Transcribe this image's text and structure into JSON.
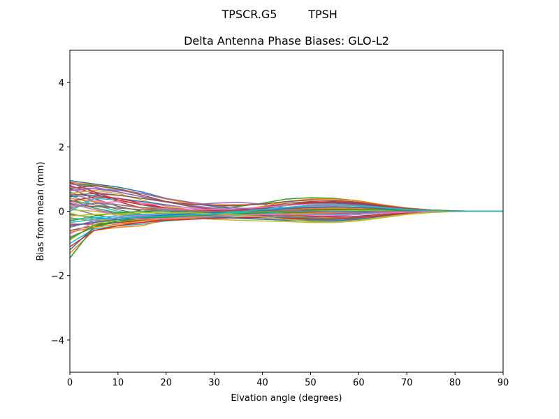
{
  "figure": {
    "suptitle_left": "TPSCR.G5",
    "suptitle_right": "TPSH"
  },
  "chart_data": {
    "type": "line",
    "title": "Delta Antenna Phase Biases: GLO-L2",
    "xlabel": "Elvation angle (degrees)",
    "ylabel": "Bias from mean (mm)",
    "xlim": [
      0,
      90
    ],
    "ylim": [
      -5,
      5
    ],
    "xticks": [
      0,
      10,
      20,
      30,
      40,
      50,
      60,
      70,
      80,
      90
    ],
    "yticks": [
      -4,
      -2,
      0,
      2,
      4
    ],
    "ytick_labels": [
      "−4",
      "−2",
      "0",
      "2",
      "4"
    ],
    "grid": false,
    "legend": "none",
    "x": [
      0,
      5,
      10,
      15,
      20,
      25,
      30,
      35,
      40,
      45,
      50,
      55,
      60,
      65,
      70,
      75,
      80,
      85,
      90
    ],
    "colors": [
      "#1f77b4",
      "#ff7f0e",
      "#2ca02c",
      "#d62728",
      "#9467bd",
      "#8c564b",
      "#e377c2",
      "#7f7f7f",
      "#bcbd22",
      "#17becf"
    ],
    "series": [
      {
        "values": [
          0.95,
          0.85,
          0.75,
          0.6,
          0.4,
          0.25,
          0.15,
          0.05,
          -0.05,
          -0.15,
          -0.2,
          -0.2,
          -0.15,
          -0.1,
          -0.05,
          -0.02,
          0.0,
          0.0,
          0.0
        ]
      },
      {
        "values": [
          0.9,
          0.82,
          0.7,
          0.55,
          0.38,
          0.25,
          0.2,
          0.2,
          0.22,
          0.3,
          0.35,
          0.33,
          0.28,
          0.18,
          0.1,
          0.04,
          0.01,
          0.0,
          0.0
        ]
      },
      {
        "values": [
          0.85,
          0.8,
          0.68,
          0.5,
          0.3,
          0.18,
          0.1,
          0.15,
          0.25,
          0.38,
          0.42,
          0.4,
          0.32,
          0.2,
          0.1,
          0.04,
          0.01,
          0.0,
          0.0
        ]
      },
      {
        "values": [
          0.8,
          0.55,
          0.3,
          0.1,
          0.0,
          -0.05,
          -0.05,
          -0.02,
          0.0,
          0.05,
          0.1,
          0.12,
          0.12,
          0.08,
          0.04,
          0.02,
          0.0,
          0.0,
          0.0
        ]
      },
      {
        "values": [
          0.75,
          0.7,
          0.6,
          0.45,
          0.3,
          0.2,
          0.25,
          0.28,
          0.22,
          0.1,
          0.0,
          -0.05,
          -0.05,
          -0.04,
          -0.02,
          -0.01,
          0.0,
          0.0,
          0.0
        ]
      },
      {
        "values": [
          0.7,
          0.4,
          0.15,
          0.0,
          -0.1,
          -0.15,
          -0.1,
          0.0,
          0.12,
          0.25,
          0.3,
          0.28,
          0.22,
          0.14,
          0.07,
          0.03,
          0.01,
          0.0,
          0.0
        ]
      },
      {
        "values": [
          0.65,
          0.6,
          0.5,
          0.4,
          0.28,
          0.18,
          0.1,
          0.05,
          0.05,
          0.1,
          0.15,
          0.18,
          0.16,
          0.1,
          0.05,
          0.02,
          0.0,
          0.0,
          0.0
        ]
      },
      {
        "values": [
          0.6,
          0.3,
          0.05,
          -0.1,
          -0.18,
          -0.2,
          -0.15,
          -0.08,
          0.0,
          0.08,
          0.12,
          0.12,
          0.1,
          0.06,
          0.03,
          0.01,
          0.0,
          0.0,
          0.0
        ]
      },
      {
        "values": [
          0.55,
          0.65,
          0.55,
          0.35,
          0.15,
          0.05,
          0.02,
          0.0,
          -0.05,
          -0.12,
          -0.18,
          -0.2,
          -0.18,
          -0.12,
          -0.06,
          -0.02,
          0.0,
          0.0,
          0.0
        ]
      },
      {
        "values": [
          0.5,
          0.2,
          0.0,
          -0.12,
          -0.2,
          -0.22,
          -0.18,
          -0.12,
          -0.05,
          0.02,
          0.06,
          0.08,
          0.07,
          0.05,
          0.02,
          0.01,
          0.0,
          0.0,
          0.0
        ]
      },
      {
        "values": [
          0.45,
          0.5,
          0.4,
          0.3,
          0.2,
          0.1,
          0.0,
          -0.1,
          -0.18,
          -0.25,
          -0.3,
          -0.3,
          -0.25,
          -0.16,
          -0.08,
          -0.03,
          0.0,
          0.0,
          0.0
        ]
      },
      {
        "values": [
          0.4,
          0.3,
          0.2,
          0.1,
          0.05,
          0.02,
          0.0,
          0.05,
          0.15,
          0.3,
          0.38,
          0.38,
          0.32,
          0.2,
          0.1,
          0.04,
          0.01,
          0.0,
          0.0
        ]
      },
      {
        "values": [
          0.35,
          0.1,
          -0.05,
          -0.1,
          -0.1,
          -0.08,
          -0.05,
          0.0,
          0.05,
          0.12,
          0.18,
          0.2,
          0.18,
          0.12,
          0.06,
          0.02,
          0.0,
          0.0,
          0.0
        ]
      },
      {
        "values": [
          0.3,
          0.45,
          0.4,
          0.25,
          0.1,
          0.0,
          -0.05,
          -0.1,
          -0.12,
          -0.12,
          -0.1,
          -0.08,
          -0.06,
          -0.04,
          -0.02,
          0.0,
          0.0,
          0.0,
          0.0
        ]
      },
      {
        "values": [
          0.25,
          0.05,
          -0.08,
          -0.15,
          -0.18,
          -0.18,
          -0.15,
          -0.1,
          -0.05,
          0.0,
          0.02,
          0.03,
          0.03,
          0.02,
          0.01,
          0.0,
          0.0,
          0.0,
          0.0
        ]
      },
      {
        "values": [
          0.2,
          0.15,
          0.1,
          0.05,
          0.0,
          -0.05,
          -0.1,
          -0.15,
          -0.15,
          -0.1,
          -0.05,
          0.0,
          0.02,
          0.02,
          0.01,
          0.0,
          0.0,
          0.0,
          0.0
        ]
      },
      {
        "values": [
          0.15,
          0.25,
          0.3,
          0.25,
          0.18,
          0.1,
          0.05,
          0.0,
          -0.05,
          -0.08,
          -0.1,
          -0.1,
          -0.08,
          -0.05,
          -0.02,
          -0.01,
          0.0,
          0.0,
          0.0
        ]
      },
      {
        "values": [
          0.1,
          -0.1,
          -0.25,
          -0.3,
          -0.25,
          -0.2,
          -0.15,
          -0.08,
          0.0,
          0.08,
          0.12,
          0.14,
          0.12,
          0.08,
          0.04,
          0.01,
          0.0,
          0.0,
          0.0
        ]
      },
      {
        "values": [
          0.05,
          0.0,
          -0.1,
          -0.15,
          -0.15,
          -0.12,
          -0.1,
          -0.08,
          -0.05,
          -0.02,
          0.0,
          0.02,
          0.02,
          0.02,
          0.01,
          0.0,
          0.0,
          0.0,
          0.0
        ]
      },
      {
        "values": [
          0.0,
          0.4,
          0.35,
          0.2,
          0.05,
          -0.05,
          -0.1,
          -0.15,
          -0.2,
          -0.25,
          -0.28,
          -0.28,
          -0.22,
          -0.14,
          -0.07,
          -0.02,
          0.0,
          0.0,
          0.0
        ]
      },
      {
        "values": [
          -0.1,
          -0.2,
          -0.25,
          -0.2,
          -0.15,
          -0.1,
          -0.05,
          0.0,
          0.08,
          0.18,
          0.25,
          0.27,
          0.22,
          0.14,
          0.07,
          0.02,
          0.0,
          0.0,
          0.0
        ]
      },
      {
        "values": [
          -0.2,
          -0.3,
          -0.35,
          -0.3,
          -0.22,
          -0.15,
          -0.1,
          -0.05,
          0.0,
          0.05,
          0.08,
          0.1,
          0.1,
          0.07,
          0.03,
          0.01,
          0.0,
          0.0,
          0.0
        ]
      },
      {
        "values": [
          -0.3,
          -0.15,
          -0.05,
          0.0,
          0.0,
          -0.02,
          -0.05,
          -0.1,
          -0.15,
          -0.2,
          -0.22,
          -0.22,
          -0.18,
          -0.12,
          -0.06,
          -0.02,
          0.0,
          0.0,
          0.0
        ]
      },
      {
        "values": [
          -0.4,
          -0.4,
          -0.35,
          -0.28,
          -0.2,
          -0.12,
          -0.05,
          0.02,
          0.1,
          0.2,
          0.28,
          0.3,
          0.25,
          0.16,
          0.08,
          0.03,
          0.0,
          0.0,
          0.0
        ]
      },
      {
        "values": [
          -0.5,
          -0.3,
          -0.2,
          -0.15,
          -0.12,
          -0.1,
          -0.1,
          -0.12,
          -0.15,
          -0.18,
          -0.18,
          -0.15,
          -0.1,
          -0.06,
          -0.03,
          -0.01,
          0.0,
          0.0,
          0.0
        ]
      },
      {
        "values": [
          -0.6,
          -0.45,
          -0.35,
          -0.25,
          -0.15,
          -0.08,
          -0.02,
          0.05,
          0.12,
          0.2,
          0.25,
          0.25,
          0.2,
          0.12,
          0.06,
          0.02,
          0.0,
          0.0,
          0.0
        ]
      },
      {
        "values": [
          -0.7,
          -0.35,
          -0.2,
          -0.12,
          -0.1,
          -0.1,
          -0.12,
          -0.15,
          -0.2,
          -0.25,
          -0.3,
          -0.3,
          -0.25,
          -0.15,
          -0.07,
          -0.02,
          0.0,
          0.0,
          0.0
        ]
      },
      {
        "values": [
          -0.8,
          -0.5,
          -0.4,
          -0.35,
          -0.25,
          -0.2,
          -0.18,
          -0.15,
          -0.1,
          -0.05,
          0.0,
          0.02,
          0.03,
          0.02,
          0.01,
          0.0,
          0.0,
          0.0,
          0.0
        ]
      },
      {
        "values": [
          -0.9,
          -0.4,
          -0.25,
          -0.2,
          -0.2,
          -0.22,
          -0.25,
          -0.28,
          -0.3,
          -0.32,
          -0.35,
          -0.35,
          -0.3,
          -0.2,
          -0.1,
          -0.04,
          -0.01,
          0.0,
          0.0
        ]
      },
      {
        "values": [
          -1.0,
          -0.55,
          -0.45,
          -0.4,
          -0.3,
          -0.25,
          -0.2,
          -0.15,
          -0.1,
          -0.05,
          -0.02,
          0.0,
          0.0,
          0.0,
          0.0,
          0.0,
          0.0,
          0.0,
          0.0
        ]
      },
      {
        "values": [
          -1.2,
          -0.5,
          -0.3,
          -0.2,
          -0.15,
          -0.15,
          -0.18,
          -0.22,
          -0.25,
          -0.28,
          -0.3,
          -0.3,
          -0.25,
          -0.16,
          -0.08,
          -0.03,
          0.0,
          0.0,
          0.0
        ]
      },
      {
        "values": [
          -1.3,
          -0.6,
          -0.5,
          -0.45,
          -0.25,
          -0.2,
          -0.15,
          -0.1,
          -0.05,
          0.0,
          0.05,
          0.08,
          0.08,
          0.06,
          0.03,
          0.01,
          0.0,
          0.0,
          0.0
        ]
      },
      {
        "values": [
          -1.45,
          -0.5,
          -0.3,
          -0.25,
          -0.2,
          -0.18,
          -0.15,
          -0.12,
          -0.08,
          -0.05,
          -0.03,
          -0.02,
          -0.01,
          0.0,
          0.0,
          0.0,
          0.0,
          0.0,
          0.0
        ]
      },
      {
        "values": [
          0.9,
          0.6,
          0.35,
          0.2,
          0.1,
          0.05,
          0.02,
          0.0,
          -0.05,
          -0.1,
          -0.15,
          -0.18,
          -0.16,
          -0.1,
          -0.05,
          -0.02,
          0.0,
          0.0,
          0.0
        ]
      },
      {
        "values": [
          0.85,
          0.75,
          0.6,
          0.45,
          0.3,
          0.18,
          0.08,
          0.0,
          -0.05,
          -0.08,
          -0.08,
          -0.06,
          -0.04,
          -0.02,
          -0.01,
          0.0,
          0.0,
          0.0,
          0.0
        ]
      },
      {
        "values": [
          0.7,
          0.8,
          0.7,
          0.5,
          0.3,
          0.15,
          0.05,
          0.0,
          0.0,
          0.02,
          0.05,
          0.06,
          0.05,
          0.03,
          0.02,
          0.01,
          0.0,
          0.0,
          0.0
        ]
      },
      {
        "values": [
          0.55,
          0.35,
          0.2,
          0.12,
          0.08,
          0.05,
          0.05,
          0.08,
          0.12,
          0.18,
          0.22,
          0.22,
          0.18,
          0.12,
          0.06,
          0.02,
          0.0,
          0.0,
          0.0
        ]
      },
      {
        "values": [
          0.35,
          0.2,
          0.1,
          0.05,
          0.02,
          0.0,
          -0.02,
          -0.05,
          -0.1,
          -0.15,
          -0.2,
          -0.22,
          -0.18,
          -0.12,
          -0.06,
          -0.02,
          0.0,
          0.0,
          0.0
        ]
      },
      {
        "values": [
          -0.05,
          -0.25,
          -0.3,
          -0.25,
          -0.18,
          -0.12,
          -0.08,
          -0.05,
          -0.02,
          0.0,
          0.02,
          0.03,
          0.03,
          0.02,
          0.01,
          0.0,
          0.0,
          0.0,
          0.0
        ]
      },
      {
        "values": [
          -0.25,
          -0.2,
          -0.15,
          -0.1,
          -0.08,
          -0.06,
          -0.05,
          -0.05,
          -0.05,
          -0.08,
          -0.1,
          -0.1,
          -0.08,
          -0.05,
          -0.03,
          -0.01,
          0.0,
          0.0,
          0.0
        ]
      },
      {
        "values": [
          -0.45,
          -0.35,
          -0.25,
          -0.18,
          -0.12,
          -0.08,
          -0.05,
          -0.02,
          0.02,
          0.08,
          0.12,
          0.14,
          0.12,
          0.08,
          0.04,
          0.01,
          0.0,
          0.0,
          0.0
        ]
      },
      {
        "values": [
          -0.65,
          -0.5,
          -0.4,
          -0.3,
          -0.22,
          -0.18,
          -0.15,
          -0.12,
          -0.1,
          -0.08,
          -0.06,
          -0.04,
          -0.03,
          -0.02,
          -0.01,
          0.0,
          0.0,
          0.0,
          0.0
        ]
      },
      {
        "values": [
          -0.85,
          -0.45,
          -0.3,
          -0.22,
          -0.18,
          -0.15,
          -0.12,
          -0.08,
          -0.04,
          0.0,
          0.03,
          0.05,
          0.05,
          0.04,
          0.02,
          0.01,
          0.0,
          0.0,
          0.0
        ]
      },
      {
        "values": [
          -1.1,
          -0.6,
          -0.45,
          -0.35,
          -0.28,
          -0.25,
          -0.22,
          -0.2,
          -0.2,
          -0.22,
          -0.25,
          -0.25,
          -0.2,
          -0.13,
          -0.06,
          -0.02,
          0.0,
          0.0,
          0.0
        ]
      },
      {
        "values": [
          0.65,
          0.7,
          0.65,
          0.55,
          0.4,
          0.28,
          0.18,
          0.1,
          0.05,
          0.02,
          0.0,
          -0.02,
          -0.03,
          -0.02,
          -0.01,
          0.0,
          0.0,
          0.0,
          0.0
        ]
      },
      {
        "values": [
          0.5,
          0.55,
          0.5,
          0.4,
          0.3,
          0.22,
          0.18,
          0.18,
          0.22,
          0.3,
          0.35,
          0.34,
          0.28,
          0.18,
          0.09,
          0.03,
          0.01,
          0.0,
          0.0
        ]
      },
      {
        "values": [
          0.3,
          0.05,
          -0.15,
          -0.25,
          -0.22,
          -0.18,
          -0.15,
          -0.12,
          -0.1,
          -0.1,
          -0.12,
          -0.12,
          -0.1,
          -0.06,
          -0.03,
          -0.01,
          0.0,
          0.0,
          0.0
        ]
      },
      {
        "values": [
          0.1,
          0.25,
          0.2,
          0.12,
          0.05,
          0.0,
          -0.02,
          0.0,
          0.05,
          0.12,
          0.18,
          0.2,
          0.17,
          0.11,
          0.05,
          0.02,
          0.0,
          0.0,
          0.0
        ]
      },
      {
        "values": [
          -0.15,
          -0.1,
          -0.08,
          -0.05,
          -0.05,
          -0.05,
          -0.08,
          -0.12,
          -0.18,
          -0.25,
          -0.32,
          -0.34,
          -0.28,
          -0.18,
          -0.09,
          -0.03,
          0.0,
          0.0,
          0.0
        ]
      },
      {
        "values": [
          -0.35,
          -0.25,
          -0.2,
          -0.18,
          -0.15,
          -0.12,
          -0.08,
          -0.02,
          0.05,
          0.12,
          0.18,
          0.2,
          0.17,
          0.11,
          0.05,
          0.02,
          0.0,
          0.0,
          0.0
        ]
      }
    ]
  }
}
